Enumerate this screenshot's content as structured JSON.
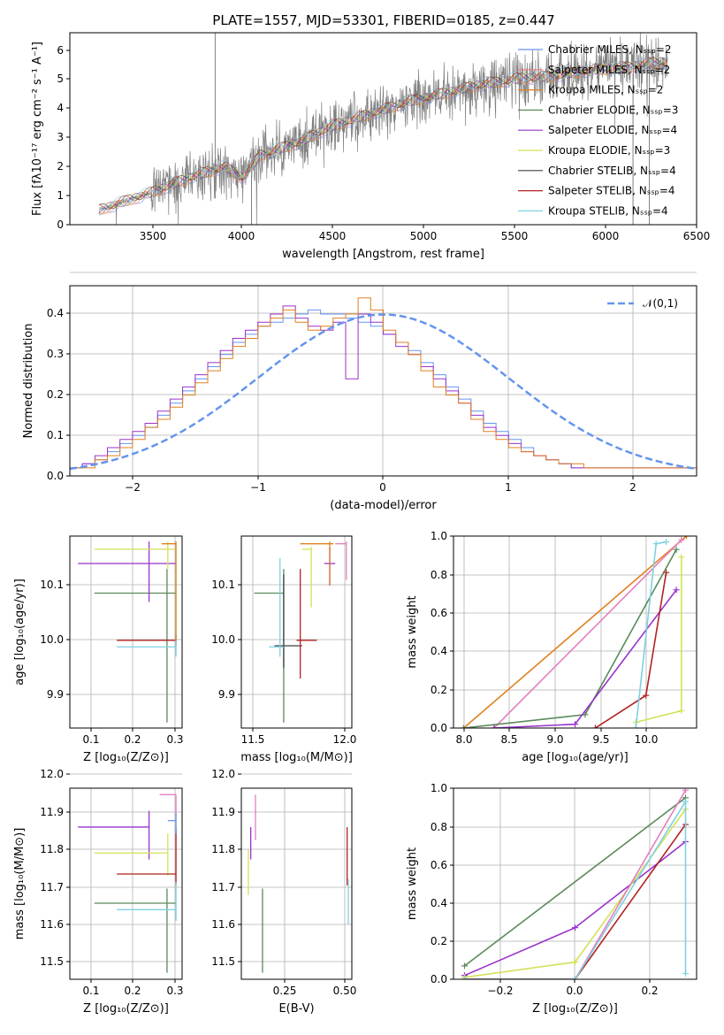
{
  "colors": {
    "chabrier_miles": "#6495ED",
    "salpeter_miles": "#F08080",
    "kroupa_miles": "#E08020",
    "chabrier_elodie": "#5A8A5A",
    "salpeter_elodie": "#9932CC",
    "kroupa_elodie": "#D4E157",
    "chabrier_stelib": "#404040",
    "salpeter_stelib": "#B22222",
    "kroupa_stelib": "#80D0E0",
    "pink": "#E37FC0",
    "normal": "#6495ED",
    "data": "#808080"
  },
  "chart_data": [
    {
      "type": "line",
      "title": "PLATE=1557, MJD=53301, FIBERID=0185, z=0.447",
      "xlabel": "wavelength [Angstrom, rest frame]",
      "ylabel": "Flux [fλ10⁻¹⁷ erg cm⁻² s⁻¹ A⁻¹]",
      "xlim": [
        3050,
        6500
      ],
      "ylim": [
        0,
        6.6
      ],
      "xticks": [
        "3500",
        "4000",
        "4500",
        "5000",
        "5500",
        "6000",
        "6500"
      ],
      "yticks": [
        "0",
        "1",
        "2",
        "3",
        "4",
        "5",
        "6"
      ],
      "x": [
        3210,
        3400,
        3500,
        3700,
        3900,
        4000,
        4100,
        4300,
        4500,
        4700,
        4900,
        5100,
        5300,
        5500,
        5700,
        5900,
        6100,
        6300
      ],
      "y": [
        0.5,
        0.9,
        1.1,
        1.6,
        2.0,
        1.6,
        2.4,
        2.8,
        3.4,
        3.8,
        4.2,
        4.5,
        4.8,
        5.0,
        5.1,
        5.3,
        5.4,
        5.6
      ],
      "legend": [
        {
          "name": "Chabrier MILES, Nₛₛₚ=2",
          "key": "chabrier_miles"
        },
        {
          "name": "Salpeter MILES, Nₛₛₚ=2",
          "key": "salpeter_miles"
        },
        {
          "name": "Kroupa MILES, Nₛₛₚ=2",
          "key": "kroupa_miles"
        },
        {
          "name": "Chabrier ELODIE, Nₛₛₚ=3",
          "key": "chabrier_elodie"
        },
        {
          "name": "Salpeter ELODIE, Nₛₛₚ=4",
          "key": "salpeter_elodie"
        },
        {
          "name": "Kroupa ELODIE, Nₛₛₚ=3",
          "key": "kroupa_elodie"
        },
        {
          "name": "Chabrier STELIB, Nₛₛₚ=4",
          "key": "chabrier_stelib"
        },
        {
          "name": "Salpeter STELIB, Nₛₛₚ=4",
          "key": "salpeter_stelib"
        },
        {
          "name": "Kroupa STELIB, Nₛₛₚ=4",
          "key": "kroupa_stelib"
        }
      ]
    },
    {
      "type": "line",
      "xlabel": "(data-model)/error",
      "ylabel": "Normed distribution",
      "xlim": [
        -2.5,
        2.5
      ],
      "ylim": [
        0,
        0.47
      ],
      "xticks": [
        "−2",
        "−1",
        "0",
        "1",
        "2"
      ],
      "yticks": [
        "0.0",
        "0.1",
        "0.2",
        "0.3",
        "0.4"
      ],
      "legend": "𝒩(0,1)",
      "hist_bin_width": 0.1,
      "hist_series": [
        {
          "key": "chabrier_miles",
          "values": [
            0.02,
            0.03,
            0.04,
            0.06,
            0.08,
            0.1,
            0.12,
            0.15,
            0.18,
            0.21,
            0.24,
            0.27,
            0.3,
            0.33,
            0.35,
            0.37,
            0.38,
            0.39,
            0.4,
            0.41,
            0.4,
            0.4,
            0.39,
            0.38,
            0.37,
            0.35,
            0.33,
            0.31,
            0.28,
            0.25,
            0.22,
            0.19,
            0.16,
            0.13,
            0.11,
            0.09,
            0.07,
            0.05,
            0.04,
            0.03,
            0.02,
            0.02,
            0.02,
            0.02,
            0.02,
            0.02,
            0.02,
            0.02,
            0.02,
            0.02
          ]
        },
        {
          "key": "salpeter_elodie",
          "values": [
            0.02,
            0.03,
            0.05,
            0.07,
            0.09,
            0.11,
            0.13,
            0.16,
            0.19,
            0.22,
            0.25,
            0.28,
            0.31,
            0.34,
            0.36,
            0.38,
            0.4,
            0.42,
            0.39,
            0.37,
            0.36,
            0.38,
            0.24,
            0.4,
            0.38,
            0.35,
            0.32,
            0.3,
            0.27,
            0.24,
            0.21,
            0.18,
            0.15,
            0.12,
            0.1,
            0.08,
            0.06,
            0.05,
            0.04,
            0.03,
            0.02,
            0.02,
            0.02,
            0.02,
            0.02,
            0.02,
            0.02,
            0.02,
            0.02,
            0.02
          ]
        },
        {
          "key": "kroupa_miles",
          "values": [
            0.02,
            0.02,
            0.04,
            0.05,
            0.07,
            0.09,
            0.12,
            0.14,
            0.17,
            0.2,
            0.23,
            0.26,
            0.29,
            0.32,
            0.34,
            0.37,
            0.39,
            0.41,
            0.38,
            0.36,
            0.37,
            0.39,
            0.4,
            0.44,
            0.41,
            0.36,
            0.33,
            0.3,
            0.26,
            0.22,
            0.2,
            0.18,
            0.14,
            0.11,
            0.09,
            0.07,
            0.06,
            0.05,
            0.04,
            0.03,
            0.03,
            0.02,
            0.02,
            0.02,
            0.02,
            0.02,
            0.02,
            0.02,
            0.02,
            0.02
          ]
        }
      ]
    },
    {
      "type": "scatter",
      "xlabel": "Z [log₁₀(Z/Z⊙)]",
      "ylabel": "age  [log₁₀(age/yr)]",
      "xlim": [
        0.04,
        0.315
      ],
      "ylim": [
        9.84,
        10.19
      ],
      "xticks": [
        "0.1",
        "0.2",
        "0.3"
      ],
      "yticks": [
        "9.9",
        "10.0",
        "10.1"
      ],
      "series": [
        {
          "key": "chabrier_elodie",
          "x": 0.278,
          "y": 10.086,
          "xerr": [
            0.1,
            0.3
          ],
          "yerr": [
            9.85,
            10.13
          ]
        },
        {
          "key": "salpeter_elodie",
          "x": 0.234,
          "y": 10.14,
          "xerr": [
            0.06,
            0.3
          ],
          "yerr": [
            10.07,
            10.18
          ]
        },
        {
          "key": "kroupa_elodie",
          "x": 0.28,
          "y": 10.166,
          "xerr": [
            0.1,
            0.3
          ],
          "yerr": [
            10.13,
            10.18
          ]
        },
        {
          "key": "salpeter_stelib",
          "x": 0.3,
          "y": 10.0,
          "xerr": [
            0.155,
            0.3
          ],
          "yerr": [
            9.99,
            10.01
          ]
        },
        {
          "key": "kroupa_stelib",
          "x": 0.3,
          "y": 9.988,
          "xerr": [
            0.155,
            0.3
          ],
          "yerr": [
            9.97,
            10.01
          ]
        },
        {
          "key": "kroupa_miles",
          "x": 0.3,
          "y": 10.176,
          "xerr": [
            0.265,
            0.3
          ],
          "yerr": [
            10.0,
            10.18
          ]
        }
      ]
    },
    {
      "type": "scatter",
      "xlabel": "mass [log₁₀(M/M⊙)]",
      "ylabel": "",
      "xlim": [
        11.45,
        12.05
      ],
      "ylim": [
        9.84,
        10.19
      ],
      "xticks": [
        "11.5",
        "12.0"
      ],
      "yticks": [
        "9.9",
        "10.0",
        "10.1"
      ],
      "series": [
        {
          "key": "chabrier_elodie",
          "x": 11.68,
          "y": 10.086,
          "xerr": [
            11.52,
            11.68
          ],
          "yerr": [
            9.85,
            10.13
          ]
        },
        {
          "key": "chabrier_stelib",
          "x": 11.68,
          "y": 9.99,
          "xerr": [
            11.63,
            11.78
          ],
          "yerr": [
            9.95,
            10.12
          ]
        },
        {
          "key": "kroupa_stelib",
          "x": 11.66,
          "y": 9.988,
          "xerr": [
            11.6,
            11.68
          ],
          "yerr": [
            9.97,
            10.15
          ]
        },
        {
          "key": "salpeter_stelib",
          "x": 11.77,
          "y": 10.0,
          "xerr": [
            11.75,
            11.86
          ],
          "yerr": [
            9.93,
            10.13
          ]
        },
        {
          "key": "kroupa_elodie",
          "x": 11.83,
          "y": 10.166,
          "xerr": [
            11.78,
            11.83
          ],
          "yerr": [
            10.06,
            10.17
          ]
        },
        {
          "key": "salpeter_elodie",
          "x": 11.93,
          "y": 10.14,
          "xerr": [
            11.9,
            11.96
          ],
          "yerr": [
            10.1,
            10.17
          ]
        },
        {
          "key": "kroupa_miles",
          "x": 11.93,
          "y": 10.176,
          "xerr": [
            11.77,
            11.95
          ],
          "yerr": [
            10.1,
            10.18
          ]
        },
        {
          "key": "pink",
          "x": 12.02,
          "y": 10.176,
          "xerr": [
            11.96,
            12.02
          ],
          "yerr": [
            10.11,
            10.18
          ]
        }
      ]
    },
    {
      "type": "line",
      "xlabel": "age  [log₁₀(age/yr)]",
      "ylabel": "mass weight",
      "xlim": [
        7.9,
        10.3
      ],
      "ylim": [
        0,
        1
      ],
      "xticks": [
        "8.0",
        "8.5",
        "9.0",
        "9.5",
        "10.0"
      ],
      "yticks": [
        "0.0",
        "0.2",
        "0.4",
        "0.6",
        "0.8",
        "1.0"
      ],
      "series": [
        {
          "key": "kroupa_miles",
          "x": [
            8.0,
            10.2
          ],
          "y": [
            0.0,
            1.0
          ]
        },
        {
          "key": "pink",
          "x": [
            8.3,
            10.15
          ],
          "y": [
            0.0,
            0.98
          ]
        },
        {
          "key": "chabrier_elodie",
          "x": [
            8.0,
            9.2,
            10.1
          ],
          "y": [
            0.0,
            0.07,
            0.93
          ]
        },
        {
          "key": "salpeter_elodie",
          "x": [
            8.3,
            9.1,
            10.1
          ],
          "y": [
            0.0,
            0.02,
            0.72
          ]
        },
        {
          "key": "salpeter_stelib",
          "x": [
            9.3,
            9.8,
            10.0
          ],
          "y": [
            0.0,
            0.17,
            0.81
          ]
        },
        {
          "key": "kroupa_elodie",
          "x": [
            9.7,
            10.15,
            10.15
          ],
          "y": [
            0.03,
            0.09,
            0.89
          ]
        },
        {
          "key": "kroupa_stelib",
          "x": [
            9.7,
            9.9,
            10.0
          ],
          "y": [
            0.0,
            0.96,
            0.97
          ]
        }
      ]
    },
    {
      "type": "scatter",
      "xlabel": "Z [log₁₀(Z/Z⊙)]",
      "ylabel": "mass [log₁₀(M/M⊙)]",
      "xlim": [
        0.04,
        0.315
      ],
      "ylim": [
        11.45,
        12.04
      ],
      "xticks": [
        "0.1",
        "0.2",
        "0.3"
      ],
      "yticks": [
        "11.5",
        "11.6",
        "11.7",
        "11.8",
        "11.9",
        "12.0"
      ],
      "series": [
        {
          "key": "salpeter_elodie",
          "x": 0.234,
          "y": 11.92,
          "xerr": [
            0.06,
            0.234
          ],
          "yerr": [
            11.82,
            11.97
          ]
        },
        {
          "key": "kroupa_elodie",
          "x": 0.28,
          "y": 11.84,
          "xerr": [
            0.1,
            0.28
          ],
          "yerr": [
            11.77,
            11.9
          ]
        },
        {
          "key": "salpeter_stelib",
          "x": 0.3,
          "y": 11.775,
          "xerr": [
            0.155,
            0.3
          ],
          "yerr": [
            11.74,
            11.92
          ]
        },
        {
          "key": "chabrier_elodie",
          "x": 0.278,
          "y": 11.685,
          "xerr": [
            0.1,
            0.3
          ],
          "yerr": [
            11.47,
            11.73
          ]
        },
        {
          "key": "kroupa_stelib",
          "x": 0.3,
          "y": 11.665,
          "xerr": [
            0.155,
            0.3
          ],
          "yerr": [
            11.63,
            11.75
          ]
        },
        {
          "key": "pink",
          "x": 0.3,
          "y": 12.02,
          "xerr": [
            0.26,
            0.3
          ],
          "yerr": [
            11.95,
            12.02
          ]
        },
        {
          "key": "chabrier_miles",
          "x": 0.3,
          "y": 11.94,
          "xerr": [
            0.28,
            0.3
          ],
          "yerr": [
            11.9,
            11.96
          ]
        }
      ]
    },
    {
      "type": "scatter",
      "xlabel": "E(B-V)",
      "ylabel": "",
      "xlim": [
        0.05,
        0.52
      ],
      "ylim": [
        11.45,
        12.04
      ],
      "xticks": [
        "0.25",
        "0.50"
      ],
      "yticks": [
        "11.5",
        "11.6",
        "11.7",
        "11.8",
        "11.9",
        "12.0"
      ],
      "series": [
        {
          "key": "kroupa_elodie",
          "x": 0.08,
          "y": 11.8,
          "xerr": [
            0.08,
            0.08
          ],
          "yerr": [
            11.71,
            11.85
          ]
        },
        {
          "key": "salpeter_elodie",
          "x": 0.09,
          "y": 11.86,
          "xerr": [
            0.09,
            0.09
          ],
          "yerr": [
            11.82,
            11.92
          ]
        },
        {
          "key": "pink",
          "x": 0.11,
          "y": 11.95,
          "xerr": [
            0.11,
            0.11
          ],
          "yerr": [
            11.88,
            12.02
          ]
        },
        {
          "key": "chabrier_elodie",
          "x": 0.14,
          "y": 11.6,
          "xerr": [
            0.14,
            0.14
          ],
          "yerr": [
            11.47,
            11.73
          ]
        },
        {
          "key": "salpeter_stelib",
          "x": 0.5,
          "y": 11.84,
          "xerr": [
            0.5,
            0.5
          ],
          "yerr": [
            11.74,
            11.92
          ]
        },
        {
          "key": "kroupa_stelib",
          "x": 0.505,
          "y": 11.7,
          "xerr": [
            0.505,
            0.505
          ],
          "yerr": [
            11.62,
            11.76
          ]
        }
      ]
    },
    {
      "type": "line",
      "xlabel": "Z [log₁₀(Z/Z⊙)]",
      "ylabel": "mass weight",
      "xlim": [
        -0.33,
        0.33
      ],
      "ylim": [
        0,
        1
      ],
      "xticks": [
        "−0.2",
        "0.0",
        "0.2"
      ],
      "yticks": [
        "0.0",
        "0.2",
        "0.4",
        "0.6",
        "0.8",
        "1.0"
      ],
      "series": [
        {
          "key": "chabrier_elodie",
          "x": [
            -0.3,
            0.3
          ],
          "y": [
            0.07,
            0.95
          ]
        },
        {
          "key": "salpeter_elodie",
          "x": [
            -0.3,
            0.0,
            0.3
          ],
          "y": [
            0.02,
            0.27,
            0.72
          ]
        },
        {
          "key": "kroupa_elodie",
          "x": [
            -0.3,
            0.0,
            0.3
          ],
          "y": [
            0.01,
            0.09,
            0.89
          ]
        },
        {
          "key": "pink",
          "x": [
            -0.3,
            0.0,
            0.3
          ],
          "y": [
            0.0,
            0.0,
            0.99
          ]
        },
        {
          "key": "salpeter_stelib",
          "x": [
            -0.3,
            0.0,
            0.3
          ],
          "y": [
            0.0,
            0.0,
            0.81
          ]
        },
        {
          "key": "kroupa_stelib",
          "x": [
            -0.3,
            0.0,
            0.3,
            0.3
          ],
          "y": [
            0.0,
            0.0,
            0.93,
            0.03
          ]
        }
      ]
    }
  ]
}
